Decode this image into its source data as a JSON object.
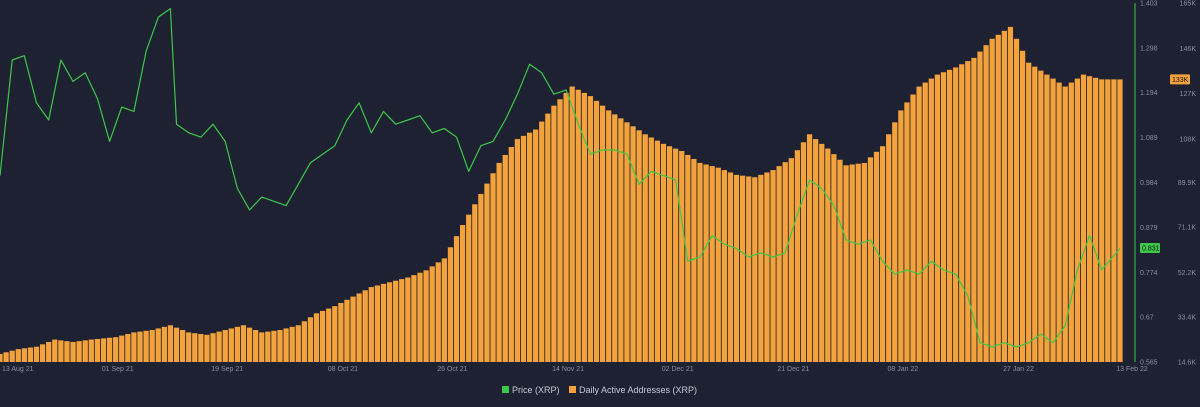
{
  "chart_data": {
    "type": "bar+line",
    "title": "",
    "x_start": "2021-08-13",
    "x_end": "2022-02-13",
    "x_tick_labels": [
      "13 Aug 21",
      "01 Sep 21",
      "19 Sep 21",
      "08 Oct 21",
      "26 Oct 21",
      "14 Nov 21",
      "02 Dec 21",
      "21 Dec 21",
      "08 Jan 22",
      "27 Jan 22",
      "13 Feb 22"
    ],
    "x_tick_dates": [
      "2021-08-13",
      "2021-09-01",
      "2021-09-19",
      "2021-10-08",
      "2021-10-26",
      "2021-11-14",
      "2021-12-02",
      "2021-12-21",
      "2022-01-08",
      "2022-01-27",
      "2022-02-13"
    ],
    "price_axis": {
      "range": [
        0.565,
        1.403
      ],
      "tick_values": [
        0.565,
        0.67,
        0.774,
        0.879,
        0.984,
        1.089,
        1.194,
        1.298,
        1.403
      ],
      "tick_labels": [
        "0.565",
        "0.67",
        "0.774",
        "0.879",
        "0.984",
        "1.089",
        "1.194",
        "1.298",
        "1.403"
      ],
      "current_label": "0.831",
      "current_value": 0.831,
      "color": "#3bc84a"
    },
    "address_axis": {
      "range": [
        14600,
        165000
      ],
      "tick_values": [
        14600,
        33400,
        52200,
        71100,
        89900,
        108000,
        127000,
        146000,
        165000
      ],
      "tick_labels": [
        "14.6K",
        "33.4K",
        "52.2K",
        "71.1K",
        "89.9K",
        "108K",
        "127K",
        "146K",
        "165K"
      ],
      "current_label": "133K",
      "current_value": 133000,
      "color": "#f4a23c"
    },
    "series": [
      {
        "name": "Price (XRP)",
        "kind": "line",
        "color": "#3bc84a",
        "points": [
          [
            "2021-08-13",
            1.0
          ],
          [
            "2021-08-15",
            1.27
          ],
          [
            "2021-08-17",
            1.28
          ],
          [
            "2021-08-19",
            1.17
          ],
          [
            "2021-08-21",
            1.13
          ],
          [
            "2021-08-23",
            1.27
          ],
          [
            "2021-08-25",
            1.22
          ],
          [
            "2021-08-27",
            1.24
          ],
          [
            "2021-08-29",
            1.18
          ],
          [
            "2021-08-31",
            1.08
          ],
          [
            "2021-09-02",
            1.16
          ],
          [
            "2021-09-04",
            1.15
          ],
          [
            "2021-09-06",
            1.29
          ],
          [
            "2021-09-08",
            1.37
          ],
          [
            "2021-09-10",
            1.39
          ],
          [
            "2021-09-11",
            1.12
          ],
          [
            "2021-09-13",
            1.1
          ],
          [
            "2021-09-15",
            1.09
          ],
          [
            "2021-09-17",
            1.12
          ],
          [
            "2021-09-19",
            1.08
          ],
          [
            "2021-09-21",
            0.97
          ],
          [
            "2021-09-23",
            0.92
          ],
          [
            "2021-09-25",
            0.95
          ],
          [
            "2021-09-27",
            0.94
          ],
          [
            "2021-09-29",
            0.93
          ],
          [
            "2021-10-01",
            0.98
          ],
          [
            "2021-10-03",
            1.03
          ],
          [
            "2021-10-05",
            1.05
          ],
          [
            "2021-10-07",
            1.07
          ],
          [
            "2021-10-09",
            1.13
          ],
          [
            "2021-10-11",
            1.17
          ],
          [
            "2021-10-13",
            1.1
          ],
          [
            "2021-10-15",
            1.15
          ],
          [
            "2021-10-17",
            1.12
          ],
          [
            "2021-10-19",
            1.13
          ],
          [
            "2021-10-21",
            1.14
          ],
          [
            "2021-10-23",
            1.1
          ],
          [
            "2021-10-25",
            1.11
          ],
          [
            "2021-10-27",
            1.09
          ],
          [
            "2021-10-29",
            1.01
          ],
          [
            "2021-10-31",
            1.07
          ],
          [
            "2021-11-02",
            1.08
          ],
          [
            "2021-11-04",
            1.13
          ],
          [
            "2021-11-06",
            1.19
          ],
          [
            "2021-11-08",
            1.26
          ],
          [
            "2021-11-10",
            1.24
          ],
          [
            "2021-11-12",
            1.19
          ],
          [
            "2021-11-14",
            1.2
          ],
          [
            "2021-11-16",
            1.12
          ],
          [
            "2021-11-18",
            1.05
          ],
          [
            "2021-11-20",
            1.06
          ],
          [
            "2021-11-22",
            1.06
          ],
          [
            "2021-11-24",
            1.05
          ],
          [
            "2021-11-26",
            0.98
          ],
          [
            "2021-11-28",
            1.01
          ],
          [
            "2021-11-30",
            1.0
          ],
          [
            "2021-12-02",
            0.99
          ],
          [
            "2021-12-04",
            0.8
          ],
          [
            "2021-12-06",
            0.81
          ],
          [
            "2021-12-08",
            0.86
          ],
          [
            "2021-12-10",
            0.84
          ],
          [
            "2021-12-12",
            0.83
          ],
          [
            "2021-12-14",
            0.81
          ],
          [
            "2021-12-16",
            0.82
          ],
          [
            "2021-12-18",
            0.81
          ],
          [
            "2021-12-20",
            0.82
          ],
          [
            "2021-12-22",
            0.91
          ],
          [
            "2021-12-24",
            0.99
          ],
          [
            "2021-12-26",
            0.97
          ],
          [
            "2021-12-28",
            0.93
          ],
          [
            "2021-12-30",
            0.85
          ],
          [
            "2022-01-01",
            0.84
          ],
          [
            "2022-01-03",
            0.85
          ],
          [
            "2022-01-05",
            0.8
          ],
          [
            "2022-01-07",
            0.77
          ],
          [
            "2022-01-09",
            0.78
          ],
          [
            "2022-01-11",
            0.77
          ],
          [
            "2022-01-13",
            0.8
          ],
          [
            "2022-01-15",
            0.78
          ],
          [
            "2022-01-17",
            0.77
          ],
          [
            "2022-01-19",
            0.72
          ],
          [
            "2022-01-21",
            0.61
          ],
          [
            "2022-01-23",
            0.6
          ],
          [
            "2022-01-25",
            0.61
          ],
          [
            "2022-01-27",
            0.6
          ],
          [
            "2022-01-29",
            0.61
          ],
          [
            "2022-01-31",
            0.63
          ],
          [
            "2022-02-02",
            0.61
          ],
          [
            "2022-02-04",
            0.65
          ],
          [
            "2022-02-06",
            0.78
          ],
          [
            "2022-02-08",
            0.86
          ],
          [
            "2022-02-10",
            0.78
          ],
          [
            "2022-02-13",
            0.83
          ]
        ]
      },
      {
        "name": "Daily Active Addresses (XRP)",
        "kind": "bar",
        "color": "#f4a23c",
        "points": [
          [
            "2021-08-13",
            18000
          ],
          [
            "2021-08-16",
            20000
          ],
          [
            "2021-08-19",
            21000
          ],
          [
            "2021-08-22",
            24000
          ],
          [
            "2021-08-25",
            23000
          ],
          [
            "2021-08-28",
            24000
          ],
          [
            "2021-09-01",
            25000
          ],
          [
            "2021-09-04",
            27000
          ],
          [
            "2021-09-07",
            28000
          ],
          [
            "2021-09-10",
            30000
          ],
          [
            "2021-09-13",
            27000
          ],
          [
            "2021-09-16",
            26000
          ],
          [
            "2021-09-19",
            28000
          ],
          [
            "2021-09-22",
            30000
          ],
          [
            "2021-09-25",
            27000
          ],
          [
            "2021-09-28",
            28000
          ],
          [
            "2021-10-01",
            30000
          ],
          [
            "2021-10-04",
            35000
          ],
          [
            "2021-10-07",
            38000
          ],
          [
            "2021-10-10",
            42000
          ],
          [
            "2021-10-13",
            46000
          ],
          [
            "2021-10-16",
            48000
          ],
          [
            "2021-10-19",
            50000
          ],
          [
            "2021-10-22",
            53000
          ],
          [
            "2021-10-25",
            58000
          ],
          [
            "2021-10-28",
            72000
          ],
          [
            "2021-10-31",
            85000
          ],
          [
            "2021-11-03",
            98000
          ],
          [
            "2021-11-06",
            108000
          ],
          [
            "2021-11-09",
            112000
          ],
          [
            "2021-11-12",
            122000
          ],
          [
            "2021-11-15",
            130000
          ],
          [
            "2021-11-18",
            126000
          ],
          [
            "2021-11-21",
            120000
          ],
          [
            "2021-11-24",
            115000
          ],
          [
            "2021-11-27",
            110000
          ],
          [
            "2021-11-30",
            106000
          ],
          [
            "2021-12-03",
            103000
          ],
          [
            "2021-12-06",
            98000
          ],
          [
            "2021-12-09",
            96000
          ],
          [
            "2021-12-12",
            93000
          ],
          [
            "2021-12-15",
            92000
          ],
          [
            "2021-12-18",
            95000
          ],
          [
            "2021-12-21",
            100000
          ],
          [
            "2021-12-24",
            110000
          ],
          [
            "2021-12-27",
            104000
          ],
          [
            "2021-12-30",
            97000
          ],
          [
            "2022-01-02",
            98000
          ],
          [
            "2022-01-05",
            105000
          ],
          [
            "2022-01-08",
            120000
          ],
          [
            "2022-01-11",
            130000
          ],
          [
            "2022-01-14",
            135000
          ],
          [
            "2022-01-17",
            138000
          ],
          [
            "2022-01-20",
            142000
          ],
          [
            "2022-01-23",
            150000
          ],
          [
            "2022-01-26",
            155000
          ],
          [
            "2022-01-29",
            140000
          ],
          [
            "2022-02-01",
            135000
          ],
          [
            "2022-02-04",
            130000
          ],
          [
            "2022-02-07",
            135000
          ],
          [
            "2022-02-10",
            133000
          ],
          [
            "2022-02-13",
            133000
          ]
        ]
      }
    ],
    "legend": {
      "placement": "bottom-center",
      "entries": [
        {
          "label": "Price (XRP)",
          "color": "#3bc84a"
        },
        {
          "label": "Daily Active Addresses (XRP)",
          "color": "#f4a23c"
        }
      ]
    },
    "grid": false
  }
}
